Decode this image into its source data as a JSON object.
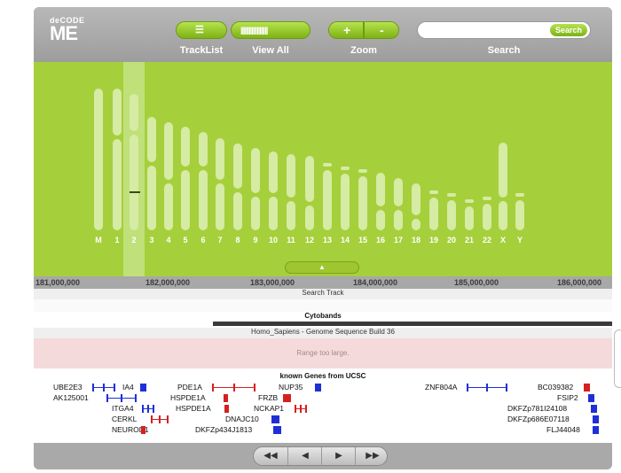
{
  "header": {
    "logo_brand": "deCODE",
    "logo_mark": "ME",
    "tracklist_label": "TrackList",
    "viewall_label": "View All",
    "zoom_label": "Zoom",
    "zoom_in": "+",
    "zoom_out": "-",
    "search_label": "Search",
    "search_button": "Search",
    "search_value": ""
  },
  "chromosomes": [
    "M",
    "1",
    "2",
    "3",
    "4",
    "5",
    "6",
    "7",
    "8",
    "9",
    "10",
    "11",
    "12",
    "13",
    "14",
    "15",
    "16",
    "17",
    "18",
    "19",
    "20",
    "21",
    "22",
    "X",
    "Y"
  ],
  "selected_chromosome": "2",
  "ruler": {
    "ticks": [
      "181,000,000",
      "182,000,000",
      "183,000,000",
      "184,000,000",
      "185,000,000",
      "186,000,000"
    ]
  },
  "tracks": {
    "search_track": "Search Track",
    "cytobands": "Cytobands",
    "genome_title": "Homo_Sapiens - Genome Sequence Build 36",
    "range_message": "Range too large.",
    "genes_title": "known Genes from UCSC"
  },
  "genes": [
    "UBE2E3",
    "IA4",
    "PDE1A",
    "NUP35",
    "ZNF804A",
    "BC039382",
    "AK125001",
    "HSPDE1A",
    "FRZB",
    "FSIP2",
    "ITGA4",
    "HSPDE1A",
    "NCKAP1",
    "DKFZp781I24108",
    "CERKL",
    "DNAJC10",
    "DKFZp686E07118",
    "NEUROD1",
    "DKFZp434J1813",
    "FLJ44048"
  ],
  "nav": {
    "first": "◀◀",
    "prev": "◀",
    "next": "▶",
    "last": "▶▶"
  },
  "colors": {
    "accent_green": "#a6cf3c",
    "gene_blue": "#1f2fd6",
    "gene_red": "#d61f1f"
  }
}
